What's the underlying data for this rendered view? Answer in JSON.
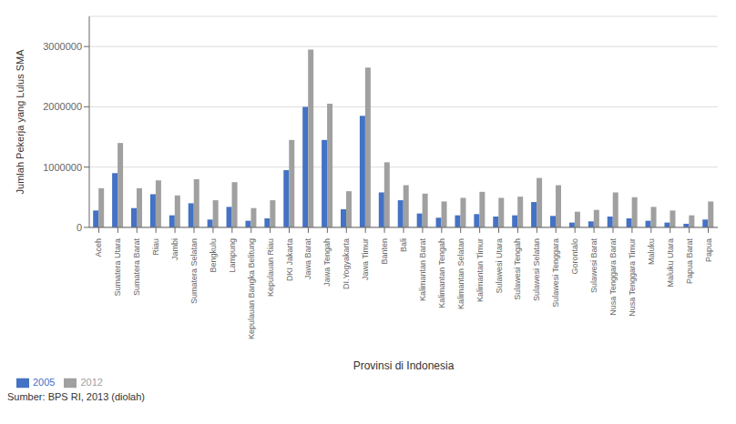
{
  "chart_data": {
    "type": "bar",
    "xlabel": "Provinsi di Indonesia",
    "ylabel": "Jumlah Pekerja yang  Lulus SMA",
    "annotations": [
      "Sumber: BPS RI, 2013 (diolah)"
    ],
    "categories": [
      "Aceh",
      "Sumatera Utara",
      "Sumatera Barat",
      "Riau",
      "Jambi",
      "Sumatera Selatan",
      "Bengkulu",
      "Lampung",
      "Kepulauan Bangka Belitung",
      "Kepulauan Riau",
      "DKI Jakarta",
      "Jawa Barat",
      "Jawa Tengah",
      "DI.Yogyakarta",
      "Jawa Timur",
      "Banten",
      "Bali",
      "Kalimantan Barat",
      "Kalimantan Tengah",
      "Kalimantan Selatan",
      "Kalimantan Timur",
      "Sulawesi Utara",
      "Sulawesi Tengah",
      "Sulawesi Selatan",
      "Sulawesi Tenggara",
      "Gorontalo",
      "Sulawesi Barat",
      "Nusa Tenggara Barat",
      "Nusa Tenggara Timur",
      "Maluku",
      "Maluku Utara",
      "Papua Barat",
      "Papua"
    ],
    "series": [
      {
        "name": "2005",
        "color": "#4472C4",
        "values": [
          280000,
          900000,
          320000,
          550000,
          200000,
          400000,
          130000,
          340000,
          110000,
          150000,
          950000,
          2000000,
          1450000,
          300000,
          1850000,
          580000,
          450000,
          230000,
          160000,
          200000,
          220000,
          180000,
          200000,
          420000,
          190000,
          80000,
          100000,
          180000,
          150000,
          110000,
          80000,
          60000,
          130000
        ]
      },
      {
        "name": "2012",
        "color": "#A0A0A0",
        "values": [
          650000,
          1400000,
          650000,
          780000,
          530000,
          800000,
          450000,
          750000,
          320000,
          450000,
          1450000,
          2950000,
          2050000,
          600000,
          2650000,
          1080000,
          700000,
          560000,
          430000,
          490000,
          590000,
          490000,
          510000,
          820000,
          700000,
          260000,
          290000,
          580000,
          500000,
          340000,
          280000,
          200000,
          430000
        ]
      }
    ],
    "ylim": [
      0,
      3500000
    ],
    "yticks": [
      0,
      1000000,
      2000000,
      3000000
    ],
    "grid": true,
    "legend": "lower left"
  }
}
